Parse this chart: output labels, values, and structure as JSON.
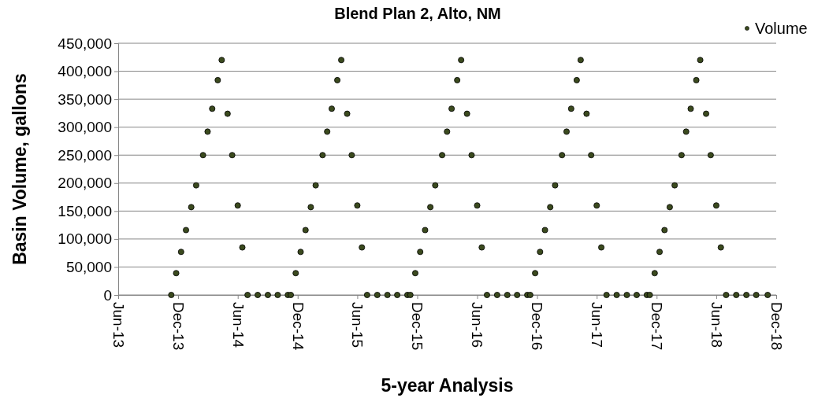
{
  "chart_data": {
    "type": "scatter",
    "title": "Blend Plan 2, Alto, NM",
    "xlabel": "5-year Analysis",
    "ylabel": "Basin Volume, gallons",
    "xlim": [
      "2013-06-01",
      "2018-12-01"
    ],
    "xticks": [
      {
        "value": "2013-06-01",
        "label": "Jun-13"
      },
      {
        "value": "2013-12-01",
        "label": "Dec-13"
      },
      {
        "value": "2014-06-01",
        "label": "Jun-14"
      },
      {
        "value": "2014-12-01",
        "label": "Dec-14"
      },
      {
        "value": "2015-06-01",
        "label": "Jun-15"
      },
      {
        "value": "2015-12-01",
        "label": "Dec-15"
      },
      {
        "value": "2016-06-01",
        "label": "Jun-16"
      },
      {
        "value": "2016-12-01",
        "label": "Dec-16"
      },
      {
        "value": "2017-06-01",
        "label": "Jun-17"
      },
      {
        "value": "2017-12-01",
        "label": "Dec-17"
      },
      {
        "value": "2018-06-01",
        "label": "Jun-18"
      },
      {
        "value": "2018-12-01",
        "label": "Dec-18"
      }
    ],
    "ylim": [
      0,
      450000
    ],
    "yticks": [
      0,
      {
        "value": 50000,
        "label": "50,000"
      },
      {
        "value": 100000,
        "label": "100,000"
      },
      {
        "value": 150000,
        "label": "150,000"
      },
      {
        "value": 200000,
        "label": "200,000"
      },
      {
        "value": 250000,
        "label": "250,000"
      },
      {
        "value": 300000,
        "label": "300,000"
      },
      {
        "value": 350000,
        "label": "350,000"
      },
      {
        "value": 400000,
        "label": "400,000"
      },
      {
        "value": 450000,
        "label": "450,000"
      }
    ],
    "grid": "y",
    "legend": "top right",
    "marker": "circle",
    "series": [
      {
        "name": "Volume",
        "color": "#3b4a1e",
        "x": [
          "2013-11-10",
          "2013-11-25",
          "2013-12-10",
          "2013-12-25",
          "2014-01-10",
          "2014-01-25",
          "2014-02-15",
          "2014-03-01",
          "2014-03-15",
          "2014-04-01",
          "2014-04-13",
          "2014-05-01",
          "2014-05-15",
          "2014-06-01",
          "2014-06-15",
          "2014-07-01",
          "2014-08-01",
          "2014-09-01",
          "2014-10-01",
          "2014-11-01",
          "2014-11-10",
          "2014-11-25",
          "2014-12-10",
          "2014-12-25",
          "2015-01-10",
          "2015-01-25",
          "2015-02-15",
          "2015-03-01",
          "2015-03-15",
          "2015-04-01",
          "2015-04-13",
          "2015-05-01",
          "2015-05-15",
          "2015-06-01",
          "2015-06-15",
          "2015-07-01",
          "2015-08-01",
          "2015-09-01",
          "2015-10-01",
          "2015-11-01",
          "2015-11-10",
          "2015-11-25",
          "2015-12-10",
          "2015-12-25",
          "2016-01-10",
          "2016-01-25",
          "2016-02-15",
          "2016-03-01",
          "2016-03-15",
          "2016-04-01",
          "2016-04-13",
          "2016-05-01",
          "2016-05-15",
          "2016-06-01",
          "2016-06-15",
          "2016-07-01",
          "2016-08-01",
          "2016-09-01",
          "2016-10-01",
          "2016-11-01",
          "2016-11-10",
          "2016-11-25",
          "2016-12-10",
          "2016-12-25",
          "2017-01-10",
          "2017-01-25",
          "2017-02-15",
          "2017-03-01",
          "2017-03-15",
          "2017-04-01",
          "2017-04-13",
          "2017-05-01",
          "2017-05-15",
          "2017-06-01",
          "2017-06-15",
          "2017-07-01",
          "2017-08-01",
          "2017-09-01",
          "2017-10-01",
          "2017-11-01",
          "2017-11-10",
          "2017-11-25",
          "2017-12-10",
          "2017-12-25",
          "2018-01-10",
          "2018-01-25",
          "2018-02-15",
          "2018-03-01",
          "2018-03-15",
          "2018-04-01",
          "2018-04-13",
          "2018-05-01",
          "2018-05-15",
          "2018-06-01",
          "2018-06-15",
          "2018-07-01",
          "2018-08-01",
          "2018-09-01",
          "2018-10-01",
          "2018-11-05"
        ],
        "values": [
          0,
          39000,
          77000,
          116000,
          157000,
          196000,
          250000,
          292000,
          333000,
          384000,
          420000,
          324000,
          250000,
          160000,
          85000,
          0,
          0,
          0,
          0,
          0,
          0,
          39000,
          77000,
          116000,
          157000,
          196000,
          250000,
          292000,
          333000,
          384000,
          420000,
          324000,
          250000,
          160000,
          85000,
          0,
          0,
          0,
          0,
          0,
          0,
          39000,
          77000,
          116000,
          157000,
          196000,
          250000,
          292000,
          333000,
          384000,
          420000,
          324000,
          250000,
          160000,
          85000,
          0,
          0,
          0,
          0,
          0,
          0,
          39000,
          77000,
          116000,
          157000,
          196000,
          250000,
          292000,
          333000,
          384000,
          420000,
          324000,
          250000,
          160000,
          85000,
          0,
          0,
          0,
          0,
          0,
          0,
          39000,
          77000,
          116000,
          157000,
          196000,
          250000,
          292000,
          333000,
          384000,
          420000,
          324000,
          250000,
          160000,
          85000,
          0,
          0,
          0,
          0,
          0
        ]
      }
    ]
  }
}
